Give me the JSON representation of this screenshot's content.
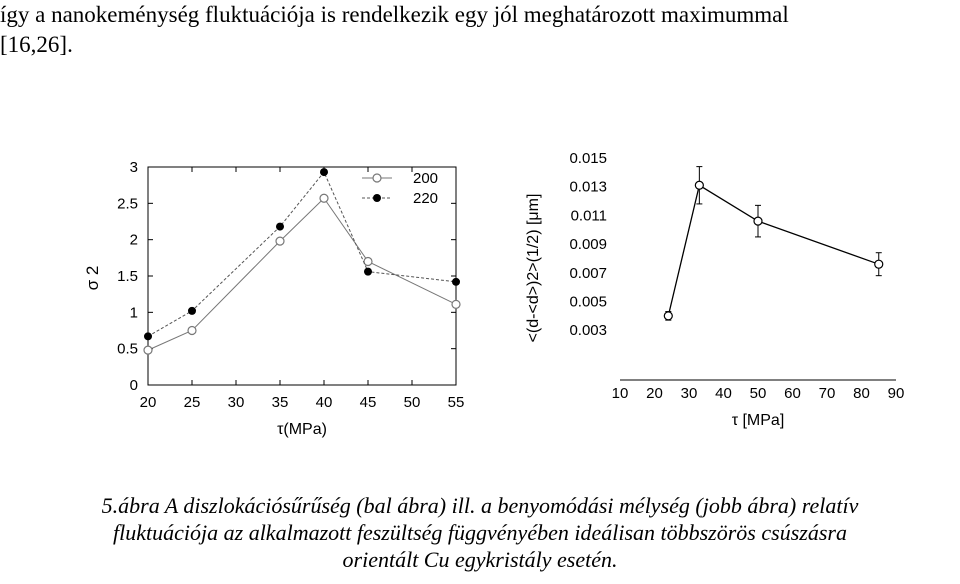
{
  "intro_text": [
    "így a nanokeménység fluktuációja is rendelkezik egy jól meghatározott maximummal",
    "[16,26]."
  ],
  "caption": [
    "5.ábra A diszlokációsűrűség (bal ábra) ill. a benyomódási mélység (jobb ábra) relatív",
    "fluktuációja az alkalmazott feszültség függvényében ideálisan többszörös csúszásra",
    "orientált Cu egykristály esetén."
  ],
  "chart_data": [
    {
      "type": "line",
      "panel": "left",
      "xlabel": "τ(MPa)",
      "ylabel": "σ 2",
      "xlim": [
        20,
        55
      ],
      "ylim": [
        0,
        3
      ],
      "x_ticks": [
        "20",
        "25",
        "30",
        "35",
        "40",
        "45",
        "50",
        "55"
      ],
      "y_ticks": [
        "0",
        "0.5",
        "1",
        "1.5",
        "2",
        "2.5",
        "3"
      ],
      "legend_position": "top-right",
      "series": [
        {
          "name": "200",
          "marker": "open-circle",
          "line": "solid",
          "color": "#777777",
          "x": [
            20,
            25,
            35,
            40,
            45,
            55
          ],
          "y": [
            0.48,
            0.75,
            1.98,
            2.57,
            1.7,
            1.11
          ]
        },
        {
          "name": "220",
          "marker": "filled-circle",
          "line": "dashed",
          "color": "#000000",
          "x": [
            20,
            25,
            35,
            40,
            45,
            55
          ],
          "y": [
            0.67,
            1.02,
            2.18,
            2.93,
            1.56,
            1.42
          ]
        }
      ]
    },
    {
      "type": "line",
      "panel": "right",
      "xlabel": "τ  [MPa]",
      "ylabel": "<(d-<d>)2>(1/2)  [μm]",
      "xlim": [
        10,
        90
      ],
      "x_ticks": [
        "10",
        "20",
        "30",
        "40",
        "50",
        "60",
        "70",
        "80",
        "90"
      ],
      "y_ticks": [
        "0.015",
        "0.013",
        "0.011",
        "0.009",
        "0.007",
        "0.005",
        "0.003"
      ],
      "series": [
        {
          "name": "",
          "marker": "open-circle",
          "line": "solid",
          "error_bars": true,
          "x": [
            24,
            33,
            50,
            85
          ],
          "y": [
            0.004,
            0.0131,
            0.0106,
            0.0076
          ],
          "err": [
            0.0003,
            0.0013,
            0.0011,
            0.0008
          ]
        }
      ]
    }
  ]
}
